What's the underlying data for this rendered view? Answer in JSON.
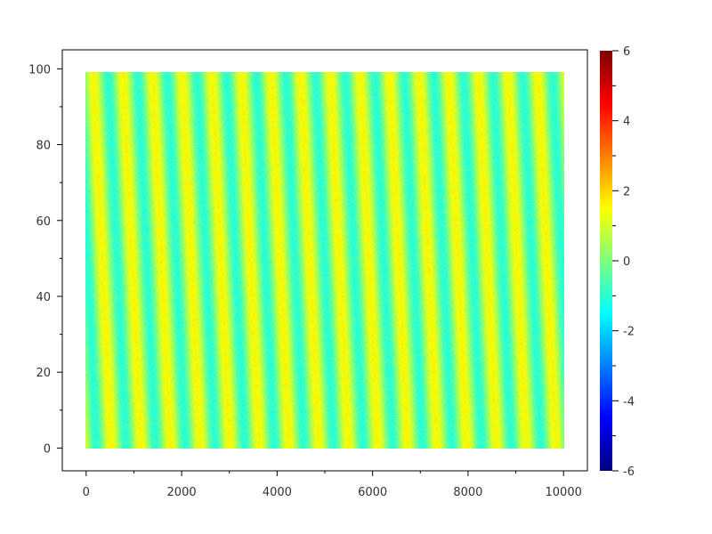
{
  "chart_data": {
    "type": "heatmap",
    "title": "",
    "xlabel": "",
    "ylabel": "",
    "xlim": [
      -500,
      10500
    ],
    "ylim": [
      -6,
      105
    ],
    "x_extent": [
      0,
      10000
    ],
    "y_extent": [
      0,
      99
    ],
    "x_ticks": [
      0,
      2000,
      4000,
      6000,
      8000,
      10000
    ],
    "x_tick_labels": [
      "0",
      "2000",
      "4000",
      "6000",
      "8000",
      "10000"
    ],
    "y_ticks": [
      0,
      20,
      40,
      60,
      80,
      100
    ],
    "y_tick_labels": [
      "0",
      "20",
      "40",
      "60",
      "80",
      "100"
    ],
    "colorbar": {
      "range": [
        -6,
        6
      ],
      "ticks": [
        6,
        4,
        2,
        0,
        -2,
        -4,
        -6
      ],
      "tick_labels": [
        "6",
        "4",
        "2",
        "0",
        "-2",
        "-4",
        "-6"
      ],
      "colormap": "jet",
      "placement": "right"
    },
    "pattern": {
      "description_values": "diagonal stripes oscillating between about -1 and 1.5",
      "period_x": 620,
      "x_shift_over_full_y": 380,
      "min_value": -1,
      "max_value": 1.5
    },
    "grid": false
  }
}
